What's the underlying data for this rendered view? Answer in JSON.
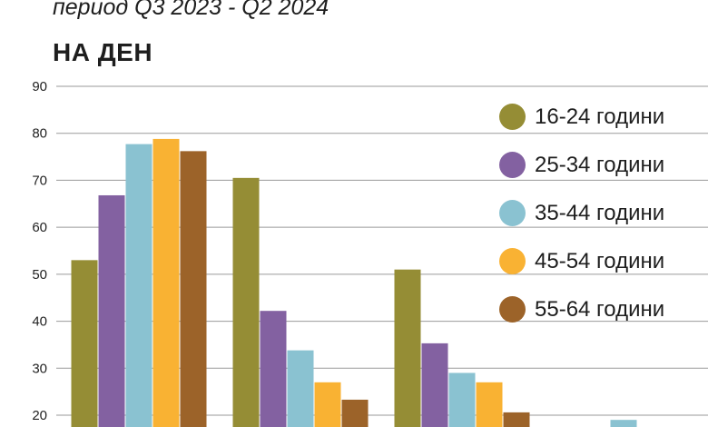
{
  "header": {
    "subtitle": "период Q3 2023 - Q2 2024",
    "heading": "НА ДЕН"
  },
  "chart_data": {
    "type": "bar",
    "title": "НА ДЕН",
    "subtitle": "период Q3 2023 - Q2 2024",
    "xlabel": "",
    "ylabel": "",
    "ylim": [
      20,
      90
    ],
    "yticks": [
      20,
      30,
      40,
      50,
      60,
      70,
      80,
      90
    ],
    "grid": true,
    "legend_position": "top-right",
    "categories": [
      "",
      "",
      "",
      ""
    ],
    "series": [
      {
        "name": "16-24 години",
        "color": "#958d35",
        "values": [
          53,
          70.5,
          51,
          null
        ]
      },
      {
        "name": "25-34 години",
        "color": "#8361a1",
        "values": [
          66.8,
          42.2,
          35.3,
          null
        ]
      },
      {
        "name": "35-44 години",
        "color": "#8ac2d1",
        "values": [
          77.7,
          33.8,
          29,
          19
        ]
      },
      {
        "name": "45-54 години",
        "color": "#f9b233",
        "values": [
          78.8,
          27,
          27,
          null
        ]
      },
      {
        "name": "55-64 години",
        "color": "#9c6329",
        "values": [
          76.2,
          23.3,
          20.6,
          null
        ]
      }
    ]
  }
}
